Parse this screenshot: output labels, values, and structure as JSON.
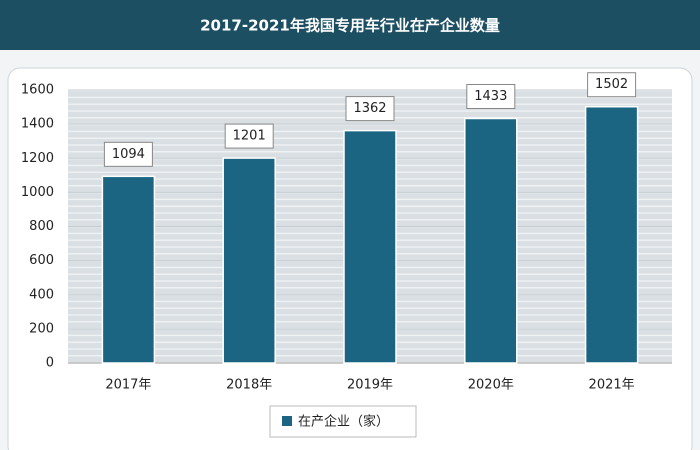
{
  "chart_data": {
    "type": "bar",
    "title": "2017-2021年我国专用车行业在产企业数量",
    "categories": [
      "2017年",
      "2018年",
      "2019年",
      "2020年",
      "2021年"
    ],
    "series": [
      {
        "name": "在产企业（家）",
        "color": "#1b6482",
        "values": [
          1094,
          1201,
          1362,
          1433,
          1502
        ]
      }
    ],
    "ylim": [
      0,
      1600
    ],
    "yticks": [
      0,
      200,
      400,
      600,
      800,
      1000,
      1200,
      1400,
      1600
    ],
    "grid": true,
    "legend": "bottom"
  }
}
